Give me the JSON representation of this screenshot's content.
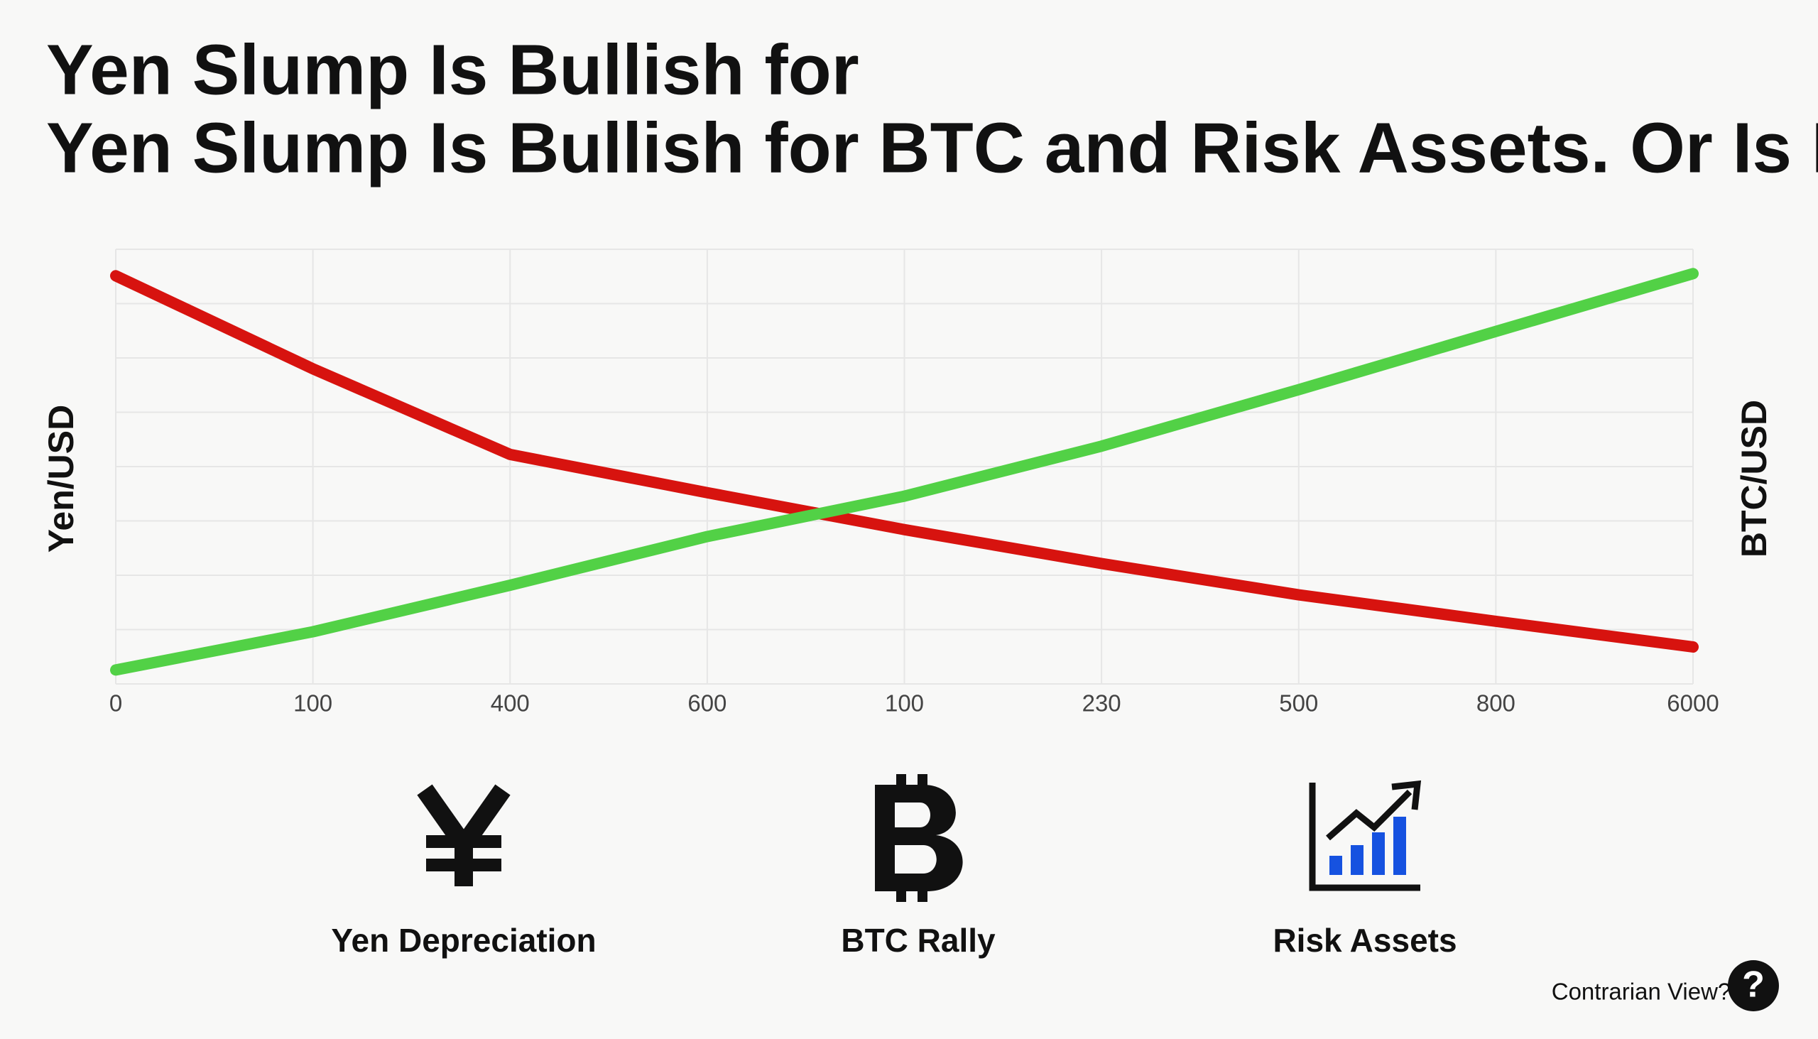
{
  "chart_data": {
    "type": "line",
    "title": "Yen Slump Is Bullish for",
    "subtitle": "Yen Slump Is Bullish for BTC and Risk Assets. Or Is It?",
    "ylabel": "Yen/USD",
    "y2label": "BTC/USD",
    "categories": [
      "0",
      "100",
      "400",
      "600",
      "100",
      "230",
      "500",
      "800",
      "6000"
    ],
    "series": [
      {
        "name": "Yen/USD",
        "color": "#d7130f",
        "values": [
          93.9,
          72.5,
          52.8,
          44,
          35.5,
          27.7,
          20.5,
          14.4,
          8.5
        ]
      },
      {
        "name": "BTC/USD",
        "color": "#52d146",
        "values": [
          3.2,
          12,
          22.7,
          33.9,
          43.2,
          54.7,
          67.7,
          81.1,
          94.4
        ],
        "axis": "y2"
      }
    ],
    "ylim": [
      0,
      100
    ],
    "y2lim": [
      0,
      100
    ],
    "grid": true
  },
  "features": [
    "Yen Depreciation",
    "BTC Rally",
    "Risk Assets"
  ],
  "footer": {
    "text": "Contrarian View?",
    "badge": "?"
  }
}
